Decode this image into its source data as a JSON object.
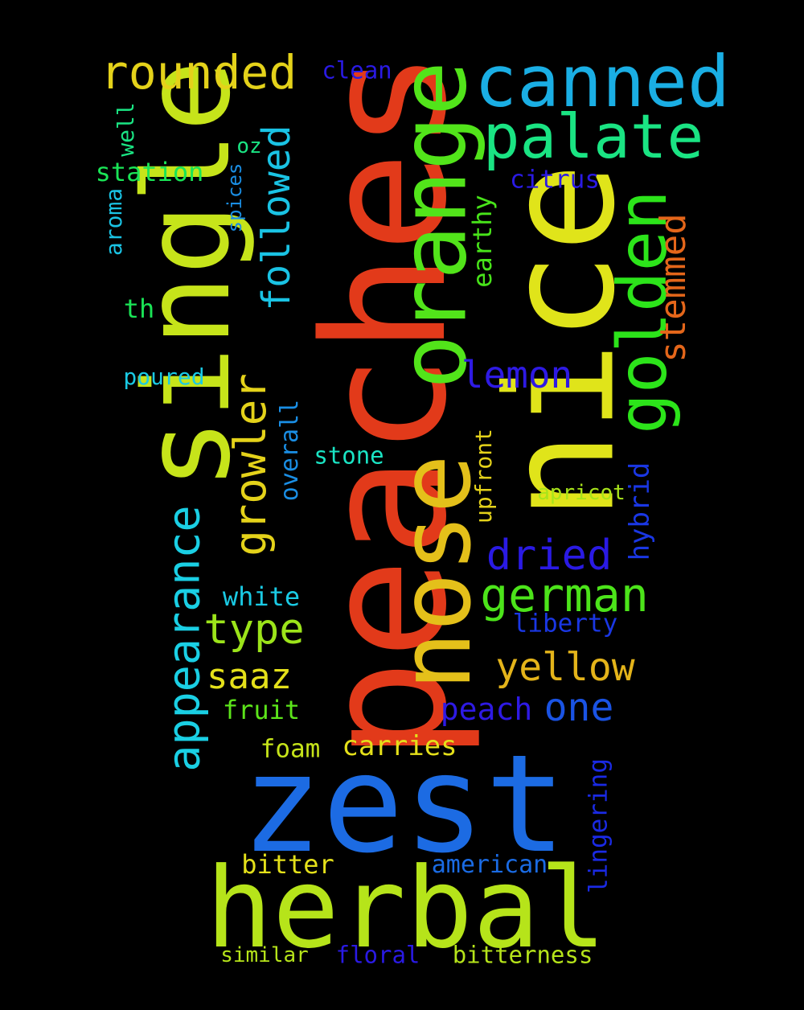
{
  "word_cloud": {
    "background": "#000000",
    "words": [
      {
        "text": "peaches",
        "color": "#E23A1A"
      },
      {
        "text": "zest",
        "color": "#1C6BE3"
      },
      {
        "text": "nice",
        "color": "#E0E41A"
      },
      {
        "text": "single",
        "color": "#C6E41A"
      },
      {
        "text": "herbal",
        "color": "#B6E41A"
      },
      {
        "text": "nose",
        "color": "#E4C01A"
      },
      {
        "text": "orange",
        "color": "#52E41A"
      },
      {
        "text": "canned",
        "color": "#1AAEE4"
      },
      {
        "text": "golden",
        "color": "#2CE41A"
      },
      {
        "text": "palate",
        "color": "#1AE483"
      },
      {
        "text": "appearance",
        "color": "#1ACFE4"
      },
      {
        "text": "rounded",
        "color": "#E4D21A"
      },
      {
        "text": "growler",
        "color": "#E4D21A"
      },
      {
        "text": "german",
        "color": "#4CE41A"
      },
      {
        "text": "followed",
        "color": "#1AC3E4"
      },
      {
        "text": "stemmed",
        "color": "#E4661A"
      },
      {
        "text": "dried",
        "color": "#2A1AE4"
      },
      {
        "text": "yellow",
        "color": "#E4B41A"
      },
      {
        "text": "type",
        "color": "#9CE41A"
      },
      {
        "text": "lemon",
        "color": "#2E1AE4"
      },
      {
        "text": "one",
        "color": "#1A53E4"
      },
      {
        "text": "saaz",
        "color": "#E4E01A"
      },
      {
        "text": "peach",
        "color": "#2E1AE4"
      },
      {
        "text": "hybrid",
        "color": "#1A37E4"
      },
      {
        "text": "earthy",
        "color": "#48E41A"
      },
      {
        "text": "carries",
        "color": "#E4E01A"
      },
      {
        "text": "lingering",
        "color": "#1A2AE4"
      },
      {
        "text": "overall",
        "color": "#1A8EE4"
      },
      {
        "text": "white",
        "color": "#1ACAE4"
      },
      {
        "text": "liberty",
        "color": "#1A37E4"
      },
      {
        "text": "fruit",
        "color": "#5CE41A"
      },
      {
        "text": "bitter",
        "color": "#E4E01A"
      },
      {
        "text": "american",
        "color": "#1A6BE4"
      },
      {
        "text": "bitterness",
        "color": "#B6E41A"
      },
      {
        "text": "citrus",
        "color": "#2A1AE4"
      },
      {
        "text": "station",
        "color": "#1AE456"
      },
      {
        "text": "foam",
        "color": "#C6E41A"
      },
      {
        "text": "upfront",
        "color": "#E4D21A"
      },
      {
        "text": "stone",
        "color": "#1AE4C4"
      },
      {
        "text": "floral",
        "color": "#2A1AE4"
      },
      {
        "text": "similar",
        "color": "#B6E41A"
      },
      {
        "text": "poured",
        "color": "#1ACAE4"
      },
      {
        "text": "apricot",
        "color": "#A8E41A"
      },
      {
        "text": "clean",
        "color": "#2A1AE4"
      },
      {
        "text": "aroma",
        "color": "#1AC3E4"
      },
      {
        "text": "well",
        "color": "#1AE483"
      },
      {
        "text": "spices",
        "color": "#1A8EE4"
      },
      {
        "text": "oz",
        "color": "#1AE483"
      },
      {
        "text": "th",
        "color": "#1AE456"
      }
    ]
  }
}
